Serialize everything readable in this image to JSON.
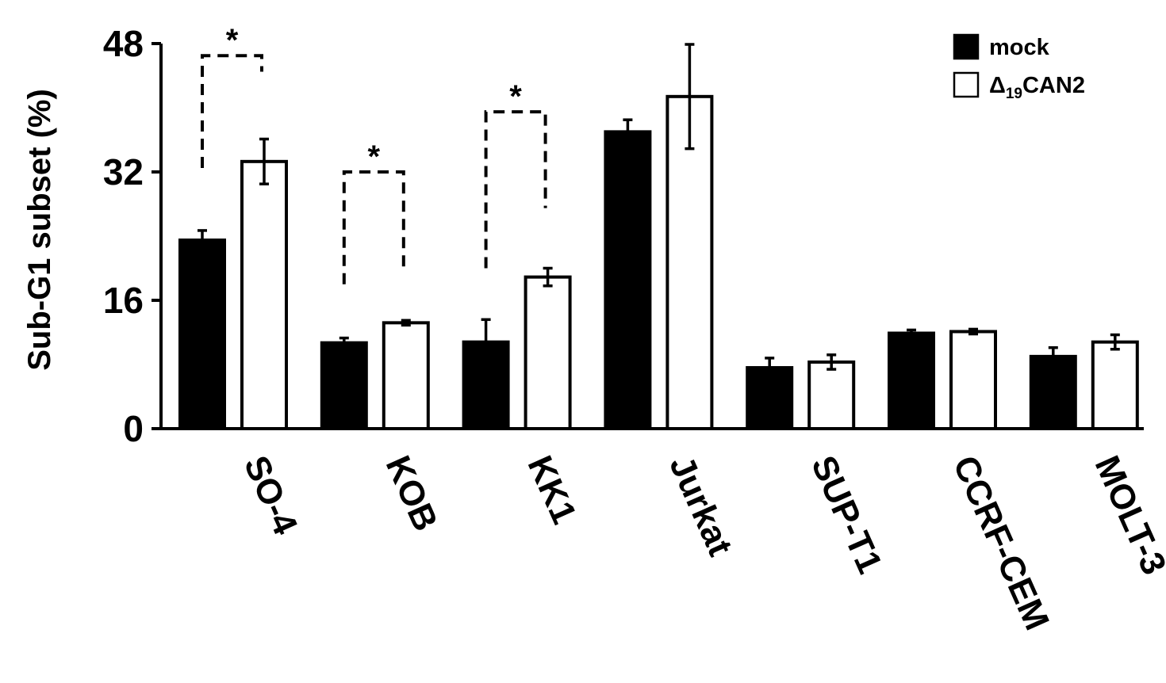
{
  "chart_data": {
    "type": "bar",
    "ylabel": "Sub-G1 subset (%)",
    "ylim": [
      0,
      48
    ],
    "yticks": [
      0,
      16,
      32,
      48
    ],
    "categories": [
      "SO-4",
      "KOB",
      "KK1",
      "Jurkat",
      "SUP-T1",
      "CCRF-CEM",
      "MOLT-3"
    ],
    "series": [
      {
        "name": "mock",
        "fill": "#000000",
        "values": [
          23.5,
          10.7,
          10.8,
          37.0,
          7.6,
          11.9,
          9.0
        ],
        "errors": [
          1.2,
          0.6,
          2.8,
          1.5,
          1.2,
          0.4,
          1.1
        ]
      },
      {
        "name": "Δ19CAN2",
        "legend_main": "Δ",
        "legend_sub": "19",
        "legend_tail": "CAN2",
        "fill": "#ffffff",
        "values": [
          33.3,
          13.2,
          18.9,
          41.4,
          8.3,
          12.1,
          10.8
        ],
        "errors": [
          2.8,
          0.3,
          1.1,
          6.5,
          0.9,
          0.3,
          0.9
        ]
      }
    ],
    "significance": [
      {
        "category": "SO-4",
        "label": "*",
        "left_start": 32.5,
        "right_end": 44.5,
        "bracket_top": 46.5
      },
      {
        "category": "KOB",
        "label": "*",
        "left_start": 18.0,
        "right_end": 20.0,
        "bracket_top": 32.0
      },
      {
        "category": "KK1",
        "label": "*",
        "left_start": 20.0,
        "right_end": 27.5,
        "bracket_top": 39.5
      }
    ],
    "legend_position": "top-right",
    "grid": false
  }
}
